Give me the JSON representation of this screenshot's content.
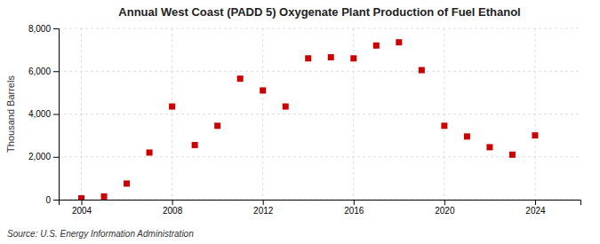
{
  "chart_data": {
    "type": "scatter",
    "title": "Annual West Coast (PADD 5) Oxygenate Plant Production of Fuel Ethanol",
    "ylabel": "Thousand Barrels",
    "annotation": "Source: U.S. Energy Information Administration",
    "x": [
      2004,
      2005,
      2006,
      2007,
      2008,
      2009,
      2010,
      2011,
      2012,
      2013,
      2014,
      2015,
      2016,
      2017,
      2018,
      2019,
      2020,
      2021,
      2022,
      2023,
      2024
    ],
    "values": [
      60,
      150,
      750,
      2200,
      4350,
      2550,
      3450,
      5650,
      5100,
      4350,
      6600,
      6650,
      6600,
      7200,
      7350,
      6050,
      3450,
      2950,
      2450,
      2100,
      3000
    ],
    "color": "#cc0000",
    "marker": "square",
    "xlim": [
      2003,
      2026
    ],
    "xticks": [
      2004,
      2008,
      2012,
      2016,
      2020,
      2024
    ],
    "ylim": [
      0,
      8000
    ],
    "yticks": [
      0,
      {
        "value": 2000,
        "label": "2,000"
      },
      {
        "value": 4000,
        "label": "4,000"
      },
      {
        "value": 6000,
        "label": "6,000"
      },
      {
        "value": 8000,
        "label": "8,000"
      }
    ],
    "grid": true
  }
}
